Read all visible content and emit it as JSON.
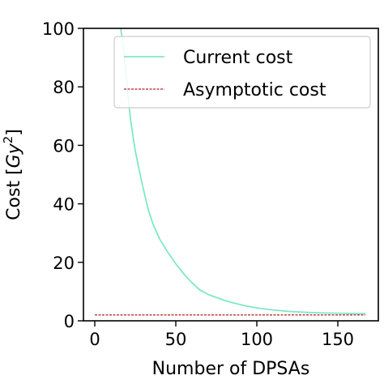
{
  "chart_data": {
    "type": "line",
    "xlabel": "Number of DPSAs",
    "ylabel": "Cost [Gy²]",
    "ylabel_parts": {
      "prefix": "Cost [",
      "var": "Gy",
      "sup": "2",
      "suffix": "]"
    },
    "xlim": [
      -7,
      175
    ],
    "ylim": [
      0,
      100
    ],
    "xticks": [
      0,
      50,
      100,
      150
    ],
    "yticks": [
      0,
      20,
      40,
      60,
      80,
      100
    ],
    "grid": false,
    "legend_position": "top-right",
    "series": [
      {
        "name": "Current cost",
        "color": "#7fe8c6",
        "style": "solid",
        "x": [
          16,
          18,
          20,
          22,
          25,
          28,
          30,
          33,
          36,
          40,
          45,
          50,
          55,
          60,
          65,
          70,
          75,
          80,
          85,
          90,
          95,
          100,
          110,
          120,
          130,
          140,
          150,
          160,
          167
        ],
        "y": [
          100,
          92,
          80,
          69,
          58,
          50,
          45,
          38,
          33,
          28,
          23.5,
          19.5,
          16,
          13,
          10.5,
          9,
          8,
          7,
          6.2,
          5.5,
          4.9,
          4.4,
          3.7,
          3.2,
          2.9,
          2.7,
          2.6,
          2.5,
          2.5
        ]
      },
      {
        "name": "Asymptotic cost",
        "color": "#b22222",
        "style": "dashed",
        "x": [
          0,
          167
        ],
        "y": [
          2,
          2
        ]
      }
    ]
  }
}
